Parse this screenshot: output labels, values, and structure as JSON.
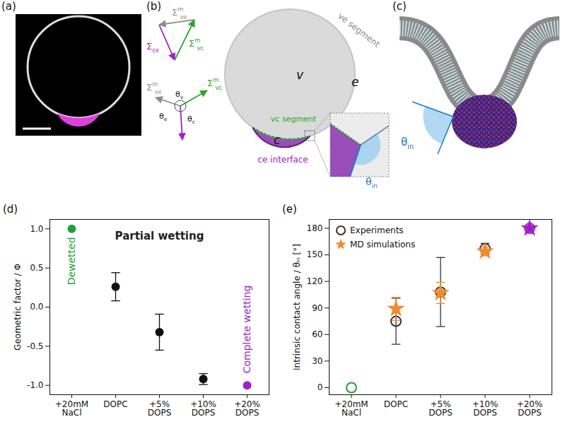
{
  "panels": {
    "a": {
      "letter": "(a)"
    },
    "b": {
      "letter": "(b)",
      "ve_segment": "ve segment",
      "vc_segment": "vc segment",
      "ce_interface": "ce interface",
      "v": "v",
      "e": "e",
      "c": "c",
      "sigma_ve": {
        "text": "Σ",
        "sup": "m",
        "sub": "ve"
      },
      "sigma_vc": {
        "text": "Σ",
        "sup": "m",
        "sub": "vc"
      },
      "sigma_ce": {
        "text": "Σ",
        "sub": "ce"
      },
      "theta_v": {
        "text": "θ",
        "sub": "v"
      },
      "theta_e": {
        "text": "θ",
        "sub": "e"
      },
      "theta_c": {
        "text": "θ",
        "sub": "c"
      },
      "theta_in": {
        "text": "θ",
        "sub": "in"
      }
    },
    "c": {
      "letter": "(c)",
      "theta_in": {
        "text": "θ",
        "sub": "in"
      }
    }
  },
  "chart_data": [
    {
      "letter": "(d)",
      "type": "scatter",
      "marker": "circle",
      "ylabel": "Geometric factor / Φ",
      "categories": [
        "+20mM NaCl",
        "DOPC",
        "+5% DOPS",
        "+10% DOPS",
        "+20% DOPS"
      ],
      "values": [
        1,
        0.26,
        -0.32,
        -0.92,
        -1
      ],
      "errors": [
        0,
        0.18,
        0.23,
        0.07,
        0
      ],
      "colors": [
        "#1f9e3c",
        "#111111",
        "#111111",
        "#111111",
        "#a21fc4"
      ],
      "ylim": [
        -1.12,
        1.12
      ],
      "yticks": [
        {
          "value": -1,
          "label": "-1.0"
        },
        {
          "value": -0.5,
          "label": "-0.5"
        },
        {
          "value": 0,
          "label": "0.0"
        },
        {
          "value": 0.5,
          "label": "0.5"
        },
        {
          "value": 1,
          "label": "1.0"
        }
      ],
      "grid": false,
      "annotations": [
        {
          "text": "Dewetted",
          "category": "+20mM NaCl",
          "color": "#1f9e3c"
        },
        {
          "text": "Partial wetting",
          "category": "+5% DOPS",
          "color": "#222222"
        },
        {
          "text": "Complete wetting",
          "category": "+20% DOPS",
          "color": "#a21fc4"
        }
      ]
    },
    {
      "letter": "(e)",
      "type": "scatter",
      "ylabel": "Intrinsic contact angle / θᵢₙ [°]",
      "categories": [
        "+20mM NaCl",
        "DOPC",
        "+5% DOPS",
        "+10% DOPS",
        "+20% DOPS"
      ],
      "ylim": [
        -8,
        190
      ],
      "yticks": [
        0,
        30,
        60,
        90,
        120,
        150,
        180
      ],
      "grid": false,
      "legend": "top-left",
      "series": [
        {
          "name": "Experiments",
          "marker": "circle-open",
          "color": "#333333",
          "colors": [
            "#1f9e3c",
            "#333333",
            "#333333",
            "#333333",
            "#a21fc4"
          ],
          "values": [
            0,
            75,
            108,
            157,
            180
          ],
          "errors": [
            0,
            26,
            39,
            6,
            0
          ]
        },
        {
          "name": "MD simulations",
          "marker": "star",
          "color": "#f28a30",
          "colors": [
            null,
            "#f28a30",
            "#f28a30",
            "#f28a30",
            "#a21fc4"
          ],
          "values": [
            null,
            89,
            107,
            154,
            180
          ],
          "errors": [
            0,
            13,
            12,
            5,
            0
          ]
        }
      ]
    }
  ]
}
